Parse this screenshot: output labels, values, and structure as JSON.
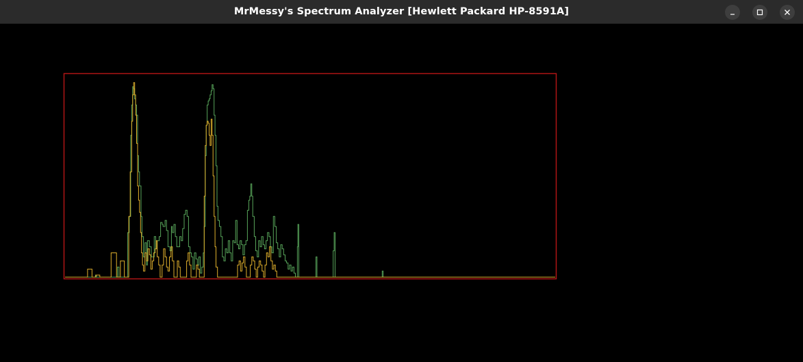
{
  "window": {
    "title": "MrMessy's Spectrum Analyzer [Hewlett Packard HP-8591A]"
  },
  "controls": {
    "minimize_icon": "minimize-icon",
    "maximize_icon": "maximize-icon",
    "close_icon": "close-icon"
  },
  "colors": {
    "background": "#000000",
    "frame": "#b01515",
    "trace_green": "#58a55a",
    "trace_yellow": "#e0b02c"
  },
  "chart_data": {
    "type": "line",
    "title": "",
    "xlabel": "",
    "ylabel": "",
    "xlim": [
      0,
      1
    ],
    "ylim": [
      0,
      1
    ],
    "grid": false,
    "legend": "none",
    "series": [
      {
        "color": "#58a55a",
        "points": [
          [
            0.0,
            0.0
          ],
          [
            0.04,
            0.0
          ],
          [
            0.062,
            0.01
          ],
          [
            0.064,
            0.0
          ],
          [
            0.105,
            0.0
          ],
          [
            0.107,
            0.05
          ],
          [
            0.11,
            0.0
          ],
          [
            0.126,
            0.0
          ],
          [
            0.128,
            0.22
          ],
          [
            0.131,
            0.3
          ],
          [
            0.134,
            0.7
          ],
          [
            0.136,
            0.85
          ],
          [
            0.138,
            0.94
          ],
          [
            0.14,
            0.93
          ],
          [
            0.142,
            0.88
          ],
          [
            0.144,
            0.85
          ],
          [
            0.146,
            0.8
          ],
          [
            0.148,
            0.6
          ],
          [
            0.15,
            0.52
          ],
          [
            0.152,
            0.45
          ],
          [
            0.155,
            0.3
          ],
          [
            0.157,
            0.2
          ],
          [
            0.16,
            0.1
          ],
          [
            0.163,
            0.17
          ],
          [
            0.166,
            0.06
          ],
          [
            0.168,
            0.18
          ],
          [
            0.172,
            0.15
          ],
          [
            0.176,
            0.1
          ],
          [
            0.182,
            0.2
          ],
          [
            0.185,
            0.14
          ],
          [
            0.188,
            0.18
          ],
          [
            0.192,
            0.2
          ],
          [
            0.195,
            0.27
          ],
          [
            0.198,
            0.26
          ],
          [
            0.2,
            0.25
          ],
          [
            0.204,
            0.28
          ],
          [
            0.207,
            0.23
          ],
          [
            0.21,
            0.15
          ],
          [
            0.214,
            0.13
          ],
          [
            0.217,
            0.25
          ],
          [
            0.219,
            0.22
          ],
          [
            0.222,
            0.26
          ],
          [
            0.225,
            0.2
          ],
          [
            0.228,
            0.15
          ],
          [
            0.231,
            0.15
          ],
          [
            0.234,
            0.2
          ],
          [
            0.237,
            0.18
          ],
          [
            0.24,
            0.24
          ],
          [
            0.243,
            0.31
          ],
          [
            0.246,
            0.33
          ],
          [
            0.249,
            0.3
          ],
          [
            0.252,
            0.15
          ],
          [
            0.255,
            0.12
          ],
          [
            0.258,
            0.1
          ],
          [
            0.261,
            0.04
          ],
          [
            0.264,
            0.12
          ],
          [
            0.267,
            0.09
          ],
          [
            0.27,
            0.06
          ],
          [
            0.273,
            0.1
          ],
          [
            0.276,
            0.02
          ],
          [
            0.279,
            0.05
          ],
          [
            0.282,
            0.12
          ],
          [
            0.284,
            0.25
          ],
          [
            0.286,
            0.6
          ],
          [
            0.288,
            0.75
          ],
          [
            0.29,
            0.85
          ],
          [
            0.292,
            0.87
          ],
          [
            0.294,
            0.88
          ],
          [
            0.296,
            0.9
          ],
          [
            0.298,
            0.92
          ],
          [
            0.3,
            0.95
          ],
          [
            0.302,
            0.93
          ],
          [
            0.304,
            0.8
          ],
          [
            0.306,
            0.7
          ],
          [
            0.308,
            0.55
          ],
          [
            0.31,
            0.35
          ],
          [
            0.312,
            0.28
          ],
          [
            0.315,
            0.25
          ],
          [
            0.318,
            0.2
          ],
          [
            0.321,
            0.1
          ],
          [
            0.324,
            0.08
          ],
          [
            0.327,
            0.14
          ],
          [
            0.33,
            0.12
          ],
          [
            0.333,
            0.18
          ],
          [
            0.336,
            0.12
          ],
          [
            0.339,
            0.08
          ],
          [
            0.342,
            0.18
          ],
          [
            0.345,
            0.17
          ],
          [
            0.348,
            0.28
          ],
          [
            0.351,
            0.16
          ],
          [
            0.354,
            0.14
          ],
          [
            0.357,
            0.18
          ],
          [
            0.36,
            0.16
          ],
          [
            0.363,
            0.11
          ],
          [
            0.366,
            0.16
          ],
          [
            0.369,
            0.18
          ],
          [
            0.372,
            0.33
          ],
          [
            0.375,
            0.38
          ],
          [
            0.377,
            0.4
          ],
          [
            0.379,
            0.46
          ],
          [
            0.381,
            0.4
          ],
          [
            0.383,
            0.3
          ],
          [
            0.386,
            0.2
          ],
          [
            0.389,
            0.13
          ],
          [
            0.392,
            0.1
          ],
          [
            0.395,
            0.18
          ],
          [
            0.398,
            0.15
          ],
          [
            0.401,
            0.2
          ],
          [
            0.404,
            0.16
          ],
          [
            0.407,
            0.14
          ],
          [
            0.41,
            0.18
          ],
          [
            0.413,
            0.22
          ],
          [
            0.416,
            0.2
          ],
          [
            0.419,
            0.15
          ],
          [
            0.422,
            0.12
          ],
          [
            0.425,
            0.3
          ],
          [
            0.428,
            0.25
          ],
          [
            0.431,
            0.17
          ],
          [
            0.434,
            0.14
          ],
          [
            0.437,
            0.1
          ],
          [
            0.44,
            0.16
          ],
          [
            0.443,
            0.14
          ],
          [
            0.446,
            0.11
          ],
          [
            0.449,
            0.08
          ],
          [
            0.452,
            0.07
          ],
          [
            0.455,
            0.04
          ],
          [
            0.458,
            0.06
          ],
          [
            0.461,
            0.03
          ],
          [
            0.464,
            0.05
          ],
          [
            0.467,
            0.02
          ],
          [
            0.47,
            0.0
          ],
          [
            0.473,
            0.0
          ],
          [
            0.474,
            0.15
          ],
          [
            0.475,
            0.26
          ],
          [
            0.477,
            0.0
          ],
          [
            0.51,
            0.0
          ],
          [
            0.512,
            0.1
          ],
          [
            0.514,
            0.0
          ],
          [
            0.546,
            0.0
          ],
          [
            0.547,
            0.13
          ],
          [
            0.549,
            0.22
          ],
          [
            0.551,
            0.0
          ],
          [
            0.645,
            0.0
          ],
          [
            0.647,
            0.03
          ],
          [
            0.649,
            0.0
          ],
          [
            1.0,
            0.0
          ]
        ]
      },
      {
        "color": "#e0b02c",
        "points": [
          [
            0.0,
            0.0
          ],
          [
            0.045,
            0.0
          ],
          [
            0.046,
            0.04
          ],
          [
            0.054,
            0.04
          ],
          [
            0.055,
            0.0
          ],
          [
            0.062,
            0.0
          ],
          [
            0.063,
            0.01
          ],
          [
            0.07,
            0.01
          ],
          [
            0.071,
            0.0
          ],
          [
            0.093,
            0.0
          ],
          [
            0.094,
            0.12
          ],
          [
            0.104,
            0.12
          ],
          [
            0.105,
            0.0
          ],
          [
            0.112,
            0.0
          ],
          [
            0.113,
            0.08
          ],
          [
            0.12,
            0.08
          ],
          [
            0.121,
            0.0
          ],
          [
            0.128,
            0.0
          ],
          [
            0.13,
            0.3
          ],
          [
            0.133,
            0.52
          ],
          [
            0.136,
            0.77
          ],
          [
            0.138,
            0.9
          ],
          [
            0.14,
            0.96
          ],
          [
            0.142,
            0.9
          ],
          [
            0.144,
            0.8
          ],
          [
            0.146,
            0.66
          ],
          [
            0.148,
            0.45
          ],
          [
            0.15,
            0.38
          ],
          [
            0.152,
            0.32
          ],
          [
            0.154,
            0.22
          ],
          [
            0.156,
            0.12
          ],
          [
            0.158,
            0.06
          ],
          [
            0.16,
            0.03
          ],
          [
            0.163,
            0.12
          ],
          [
            0.166,
            0.08
          ],
          [
            0.169,
            0.14
          ],
          [
            0.172,
            0.11
          ],
          [
            0.175,
            0.04
          ],
          [
            0.178,
            0.08
          ],
          [
            0.181,
            0.12
          ],
          [
            0.184,
            0.14
          ],
          [
            0.186,
            0.18
          ],
          [
            0.188,
            0.1
          ],
          [
            0.191,
            0.06
          ],
          [
            0.194,
            0.0
          ],
          [
            0.198,
            0.06
          ],
          [
            0.201,
            0.14
          ],
          [
            0.204,
            0.1
          ],
          [
            0.207,
            0.05
          ],
          [
            0.21,
            0.03
          ],
          [
            0.213,
            0.1
          ],
          [
            0.216,
            0.15
          ],
          [
            0.219,
            0.08
          ],
          [
            0.222,
            0.0
          ],
          [
            0.226,
            0.0
          ],
          [
            0.229,
            0.08
          ],
          [
            0.232,
            0.05
          ],
          [
            0.235,
            0.0
          ],
          [
            0.245,
            0.0
          ],
          [
            0.248,
            0.08
          ],
          [
            0.251,
            0.12
          ],
          [
            0.254,
            0.06
          ],
          [
            0.257,
            0.0
          ],
          [
            0.265,
            0.0
          ],
          [
            0.268,
            0.06
          ],
          [
            0.271,
            0.04
          ],
          [
            0.274,
            0.0
          ],
          [
            0.282,
            0.0
          ],
          [
            0.284,
            0.4
          ],
          [
            0.286,
            0.65
          ],
          [
            0.288,
            0.75
          ],
          [
            0.29,
            0.77
          ],
          [
            0.292,
            0.76
          ],
          [
            0.294,
            0.7
          ],
          [
            0.296,
            0.65
          ],
          [
            0.298,
            0.78
          ],
          [
            0.3,
            0.7
          ],
          [
            0.302,
            0.5
          ],
          [
            0.304,
            0.3
          ],
          [
            0.306,
            0.15
          ],
          [
            0.308,
            0.05
          ],
          [
            0.311,
            0.0
          ],
          [
            0.35,
            0.0
          ],
          [
            0.352,
            0.06
          ],
          [
            0.355,
            0.08
          ],
          [
            0.358,
            0.03
          ],
          [
            0.361,
            0.07
          ],
          [
            0.364,
            0.1
          ],
          [
            0.367,
            0.05
          ],
          [
            0.37,
            0.0
          ],
          [
            0.375,
            0.0
          ],
          [
            0.378,
            0.06
          ],
          [
            0.381,
            0.1
          ],
          [
            0.384,
            0.08
          ],
          [
            0.387,
            0.04
          ],
          [
            0.39,
            0.0
          ],
          [
            0.393,
            0.05
          ],
          [
            0.396,
            0.08
          ],
          [
            0.399,
            0.06
          ],
          [
            0.402,
            0.03
          ],
          [
            0.405,
            0.0
          ],
          [
            0.408,
            0.06
          ],
          [
            0.411,
            0.12
          ],
          [
            0.414,
            0.1
          ],
          [
            0.417,
            0.15
          ],
          [
            0.42,
            0.08
          ],
          [
            0.423,
            0.04
          ],
          [
            0.426,
            0.06
          ],
          [
            0.429,
            0.03
          ],
          [
            0.432,
            0.0
          ],
          [
            1.0,
            0.0
          ]
        ]
      }
    ]
  }
}
